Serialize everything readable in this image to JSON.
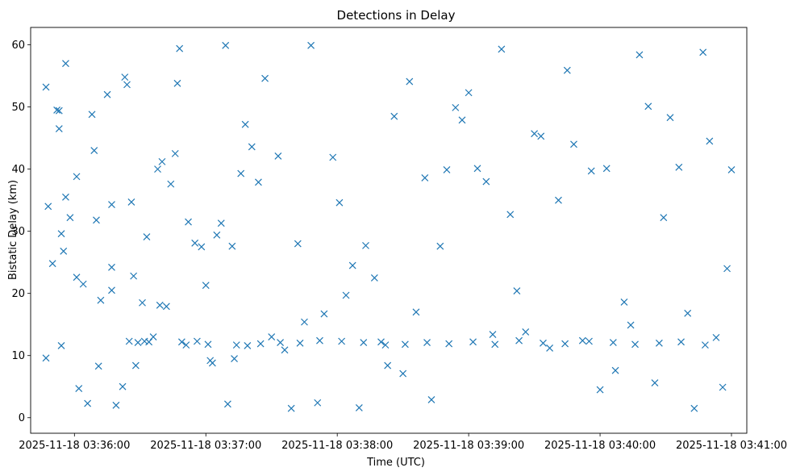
{
  "chart_data": {
    "type": "scatter",
    "title": "Detections in Delay",
    "xlabel": "Time (UTC)",
    "ylabel": "Bistatic Delay (km)",
    "marker": "x",
    "color": "#1f77b4",
    "grid": false,
    "xlim": [
      "2025-11-18 03:35:40",
      "2025-11-18 03:41:07"
    ],
    "ylim": [
      -2.5,
      62.8
    ],
    "x_ticks": [
      "2025-11-18 03:36:00",
      "2025-11-18 03:37:00",
      "2025-11-18 03:38:00",
      "2025-11-18 03:39:00",
      "2025-11-18 03:40:00",
      "2025-11-18 03:41:00"
    ],
    "y_ticks": [
      0,
      10,
      20,
      30,
      40,
      50,
      60
    ],
    "series": [
      {
        "x": [
          "2025-11-18 03:35:47",
          "2025-11-18 03:35:47",
          "2025-11-18 03:35:48",
          "2025-11-18 03:35:50",
          "2025-11-18 03:35:52",
          "2025-11-18 03:35:53",
          "2025-11-18 03:35:53",
          "2025-11-18 03:35:54",
          "2025-11-18 03:35:54",
          "2025-11-18 03:35:55",
          "2025-11-18 03:35:56",
          "2025-11-18 03:35:56",
          "2025-11-18 03:35:58",
          "2025-11-18 03:36:01",
          "2025-11-18 03:36:01",
          "2025-11-18 03:36:02",
          "2025-11-18 03:36:04",
          "2025-11-18 03:36:08",
          "2025-11-18 03:36:09",
          "2025-11-18 03:36:10",
          "2025-11-18 03:36:12",
          "2025-11-18 03:36:15",
          "2025-11-18 03:36:17",
          "2025-11-18 03:36:17",
          "2025-11-18 03:36:17",
          "2025-11-18 03:36:19",
          "2025-11-18 03:36:22",
          "2025-11-18 03:36:23",
          "2025-11-18 03:36:24",
          "2025-11-18 03:36:26",
          "2025-11-18 03:36:27",
          "2025-11-18 03:36:28",
          "2025-11-18 03:36:31",
          "2025-11-18 03:36:32",
          "2025-11-18 03:36:33",
          "2025-11-18 03:36:36",
          "2025-11-18 03:36:38",
          "2025-11-18 03:36:39",
          "2025-11-18 03:36:40",
          "2025-11-18 03:36:42",
          "2025-11-18 03:36:44",
          "2025-11-18 03:36:46",
          "2025-11-18 03:36:47",
          "2025-11-18 03:36:48",
          "2025-11-18 03:36:51",
          "2025-11-18 03:36:52",
          "2025-11-18 03:36:55",
          "2025-11-18 03:36:56",
          "2025-11-18 03:36:58",
          "2025-11-18 03:37:00",
          "2025-11-18 03:37:02",
          "2025-11-18 03:37:03",
          "2025-11-18 03:37:05",
          "2025-11-18 03:37:07",
          "2025-11-18 03:37:09",
          "2025-11-18 03:37:10",
          "2025-11-18 03:37:12",
          "2025-11-18 03:37:13",
          "2025-11-18 03:37:16",
          "2025-11-18 03:37:18",
          "2025-11-18 03:37:21",
          "2025-11-18 03:37:24",
          "2025-11-18 03:37:27",
          "2025-11-18 03:37:30",
          "2025-11-18 03:37:33",
          "2025-11-18 03:37:36",
          "2025-11-18 03:37:39",
          "2025-11-18 03:37:42",
          "2025-11-18 03:37:45",
          "2025-11-18 03:37:48",
          "2025-11-18 03:37:51",
          "2025-11-18 03:37:54",
          "2025-11-18 03:37:58",
          "2025-11-18 03:38:01",
          "2025-11-18 03:38:04",
          "2025-11-18 03:38:07",
          "2025-11-18 03:38:10",
          "2025-11-18 03:38:13",
          "2025-11-18 03:38:17",
          "2025-11-18 03:38:20",
          "2025-11-18 03:38:23",
          "2025-11-18 03:38:26",
          "2025-11-18 03:38:30",
          "2025-11-18 03:38:33",
          "2025-11-18 03:38:36",
          "2025-11-18 03:38:40",
          "2025-11-18 03:38:43",
          "2025-11-18 03:38:47",
          "2025-11-18 03:38:50",
          "2025-11-18 03:38:54",
          "2025-11-18 03:38:57",
          "2025-11-18 03:39:00",
          "2025-11-18 03:39:04",
          "2025-11-18 03:39:08",
          "2025-11-18 03:39:11",
          "2025-11-18 03:39:15",
          "2025-11-18 03:39:19",
          "2025-11-18 03:39:22",
          "2025-11-18 03:39:26",
          "2025-11-18 03:39:30",
          "2025-11-18 03:39:33",
          "2025-11-18 03:39:37",
          "2025-11-18 03:39:41",
          "2025-11-18 03:39:45",
          "2025-11-18 03:39:48",
          "2025-11-18 03:39:52",
          "2025-11-18 03:39:56",
          "2025-11-18 03:40:00",
          "2025-11-18 03:40:03",
          "2025-11-18 03:40:07",
          "2025-11-18 03:40:11",
          "2025-11-18 03:40:14",
          "2025-11-18 03:40:18",
          "2025-11-18 03:40:22",
          "2025-11-18 03:40:25",
          "2025-11-18 03:40:29",
          "2025-11-18 03:40:32",
          "2025-11-18 03:40:36",
          "2025-11-18 03:40:40",
          "2025-11-18 03:40:43",
          "2025-11-18 03:40:47",
          "2025-11-18 03:40:50",
          "2025-11-18 03:40:53",
          "2025-11-18 03:40:56",
          "2025-11-18 03:40:58",
          "2025-11-18 03:41:00",
          "2025-11-18 03:36:06",
          "2025-11-18 03:36:11",
          "2025-11-18 03:36:25",
          "2025-11-18 03:36:29",
          "2025-11-18 03:36:34",
          "2025-11-18 03:36:49",
          "2025-11-18 03:37:01",
          "2025-11-18 03:37:14",
          "2025-11-18 03:37:19",
          "2025-11-18 03:37:25",
          "2025-11-18 03:37:34",
          "2025-11-18 03:37:43",
          "2025-11-18 03:37:52",
          "2025-11-18 03:38:02",
          "2025-11-18 03:38:12",
          "2025-11-18 03:38:22",
          "2025-11-18 03:38:31",
          "2025-11-18 03:38:41",
          "2025-11-18 03:38:51",
          "2025-11-18 03:39:02",
          "2025-11-18 03:39:12",
          "2025-11-18 03:39:23",
          "2025-11-18 03:39:34",
          "2025-11-18 03:39:44",
          "2025-11-18 03:39:55",
          "2025-11-18 03:40:06",
          "2025-11-18 03:40:16",
          "2025-11-18 03:40:27",
          "2025-11-18 03:40:37",
          "2025-11-18 03:40:48"
        ],
        "y": [
          53.2,
          9.6,
          34.0,
          24.8,
          49.5,
          49.4,
          46.5,
          29.6,
          11.6,
          26.8,
          35.5,
          57.0,
          32.2,
          38.8,
          22.6,
          4.7,
          21.5,
          48.8,
          43.0,
          31.8,
          18.9,
          52.0,
          24.2,
          34.3,
          20.5,
          2.0,
          5.0,
          54.8,
          53.6,
          34.7,
          22.8,
          8.4,
          18.5,
          12.3,
          29.1,
          13.0,
          40.0,
          18.1,
          41.2,
          17.9,
          37.6,
          42.5,
          53.8,
          59.4,
          11.7,
          31.5,
          28.1,
          12.3,
          27.5,
          21.3,
          9.2,
          8.8,
          29.4,
          31.3,
          59.9,
          2.2,
          27.6,
          9.5,
          39.3,
          47.2,
          43.6,
          37.9,
          54.6,
          13.0,
          42.1,
          10.9,
          1.5,
          28.0,
          15.4,
          59.9,
          2.4,
          16.7,
          41.9,
          34.6,
          19.7,
          24.5,
          1.6,
          27.7,
          22.5,
          12.2,
          8.4,
          48.5,
          7.1,
          54.1,
          17.0,
          38.6,
          2.9,
          27.6,
          39.9,
          49.9,
          47.9,
          52.3,
          40.1,
          38.0,
          13.4,
          59.3,
          32.7,
          20.4,
          13.8,
          45.7,
          45.3,
          11.2,
          35.0,
          55.9,
          44.0,
          12.4,
          39.7,
          4.5,
          40.1,
          7.6,
          18.6,
          14.9,
          58.4,
          50.1,
          5.6,
          32.2,
          48.3,
          40.3,
          16.8,
          1.5,
          58.8,
          44.5,
          12.9,
          4.9,
          24.0,
          39.9,
          2.3,
          8.3,
          12.3,
          12.1,
          12.2,
          12.2,
          11.8,
          11.7,
          11.6,
          11.9,
          12.1,
          12.0,
          12.4,
          12.3,
          12.1,
          11.7,
          11.8,
          12.1,
          11.9,
          12.2,
          11.8,
          12.4,
          12.0,
          11.9,
          12.3,
          12.1,
          11.8,
          12.0,
          12.2,
          11.7
        ]
      }
    ]
  }
}
